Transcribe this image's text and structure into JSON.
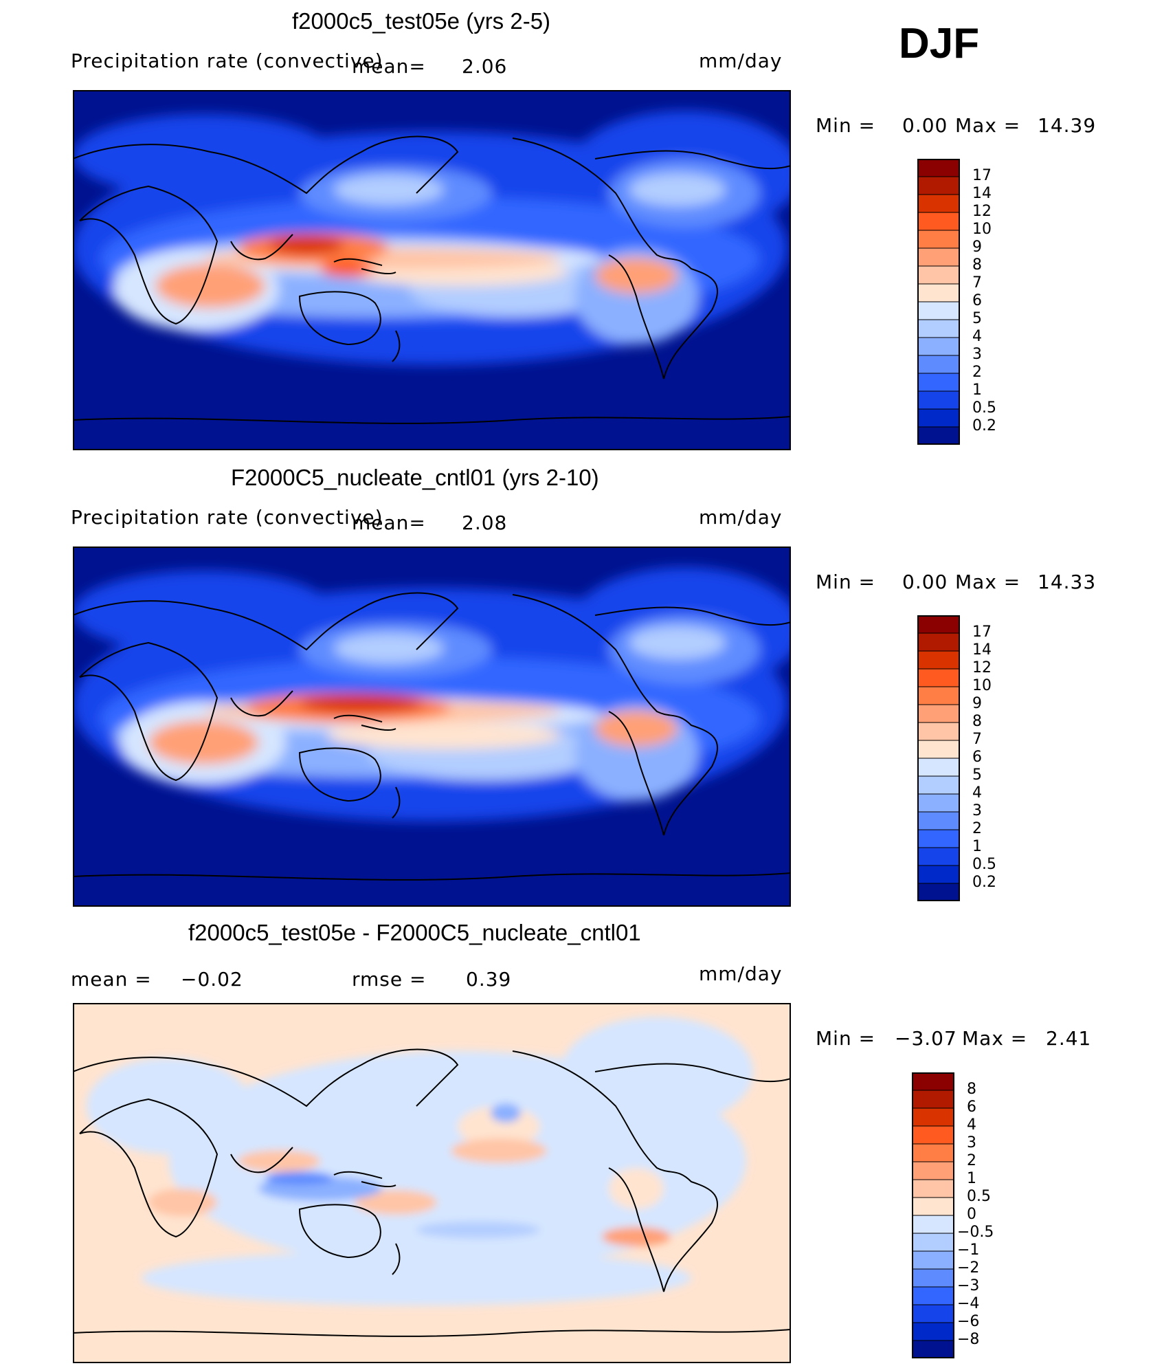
{
  "season": "DJF",
  "panels": [
    {
      "id": "test",
      "title": "f2000c5_test05e (yrs 2-5)",
      "variable": "Precipitation rate (convective)",
      "mean_label": "mean=",
      "mean_value": "2.06",
      "units": "mm/day",
      "min_label": "Min =",
      "min_value": "0.00",
      "max_label": "Max =",
      "max_value": "14.39"
    },
    {
      "id": "control",
      "title": "F2000C5_nucleate_cntl01 (yrs 2-10)",
      "variable": "Precipitation rate (convective)",
      "mean_label": "mean=",
      "mean_value": "2.08",
      "units": "mm/day",
      "min_label": "Min =",
      "min_value": "0.00",
      "max_label": "Max =",
      "max_value": "14.33"
    },
    {
      "id": "difference",
      "title": "f2000c5_test05e - F2000C5_nucleate_cntl01",
      "mean_label": "mean =",
      "mean_value": "−0.02",
      "rmse_label": "rmse =",
      "rmse_value": "0.39",
      "units": "mm/day",
      "min_label": "Min =",
      "min_value": "−3.07",
      "max_label": "Max =",
      "max_value": "2.41"
    }
  ],
  "chart_data": [
    {
      "type": "heatmap",
      "title": "f2000c5_test05e (yrs 2-5)",
      "field": "Precipitation rate (convective)",
      "units": "mm/day",
      "mean": 2.06,
      "min": 0.0,
      "max": 14.39,
      "colorbar_levels": [
        "17",
        "14",
        "12",
        "10",
        "9",
        "8",
        "7",
        "6",
        "5",
        "4",
        "3",
        "2",
        "1",
        "0.5",
        "0.2"
      ],
      "colorbar_colors": [
        "#8b0000",
        "#b21a00",
        "#d93300",
        "#ff5a1f",
        "#ff7e45",
        "#ffa077",
        "#ffc5a6",
        "#ffe4d0",
        "#d6e6ff",
        "#b2cdff",
        "#8bb0ff",
        "#5e8cff",
        "#3366ff",
        "#1644eb",
        "#0029c9",
        "#00128f"
      ]
    },
    {
      "type": "heatmap",
      "title": "F2000C5_nucleate_cntl01 (yrs 2-10)",
      "field": "Precipitation rate (convective)",
      "units": "mm/day",
      "mean": 2.08,
      "min": 0.0,
      "max": 14.33,
      "colorbar_levels": [
        "17",
        "14",
        "12",
        "10",
        "9",
        "8",
        "7",
        "6",
        "5",
        "4",
        "3",
        "2",
        "1",
        "0.5",
        "0.2"
      ],
      "colorbar_colors": [
        "#8b0000",
        "#b21a00",
        "#d93300",
        "#ff5a1f",
        "#ff7e45",
        "#ffa077",
        "#ffc5a6",
        "#ffe4d0",
        "#d6e6ff",
        "#b2cdff",
        "#8bb0ff",
        "#5e8cff",
        "#3366ff",
        "#1644eb",
        "#0029c9",
        "#00128f"
      ]
    },
    {
      "type": "heatmap",
      "title": "f2000c5_test05e - F2000C5_nucleate_cntl01",
      "field": "Precipitation rate (convective) difference",
      "units": "mm/day",
      "mean": -0.02,
      "rmse": 0.39,
      "min": -3.07,
      "max": 2.41,
      "colorbar_levels": [
        "8",
        "6",
        "4",
        "3",
        "2",
        "1",
        "0.5",
        "0",
        "−0.5",
        "−1",
        "−2",
        "−3",
        "−4",
        "−6",
        "−8"
      ],
      "colorbar_colors": [
        "#8b0000",
        "#b21a00",
        "#d93300",
        "#ff5a1f",
        "#ff7e45",
        "#ffa077",
        "#ffc5a6",
        "#ffe4d0",
        "#d6e6ff",
        "#b2cdff",
        "#8bb0ff",
        "#5e8cff",
        "#3366ff",
        "#1644eb",
        "#0029c9",
        "#00128f"
      ]
    }
  ]
}
